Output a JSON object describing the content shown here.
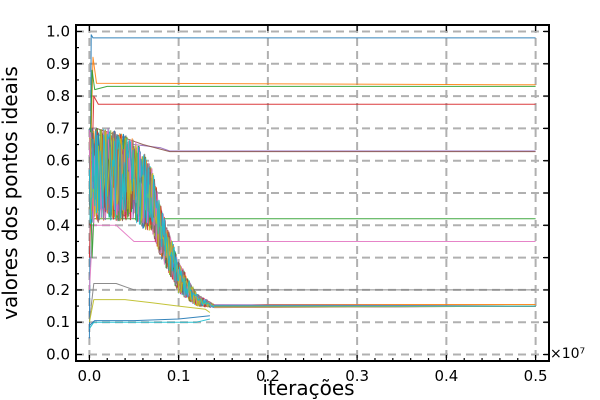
{
  "chart_data": {
    "type": "line",
    "title": "",
    "xlabel": "iterações",
    "ylabel": "valores dos pontos ideais",
    "x_offset_label": "×10⁷",
    "xlim": [
      -0.015,
      0.515
    ],
    "ylim": [
      -0.02,
      1.02
    ],
    "xticks": [
      0.0,
      0.1,
      0.2,
      0.3,
      0.4,
      0.5
    ],
    "xtick_labels": [
      "0.0",
      "0.1",
      "0.2",
      "0.3",
      "0.4",
      "0.5"
    ],
    "yticks": [
      0.0,
      0.1,
      0.2,
      0.3,
      0.4,
      0.5,
      0.6,
      0.7,
      0.8,
      0.9,
      1.0
    ],
    "ytick_labels": [
      "0.0",
      "0.1",
      "0.2",
      "0.3",
      "0.4",
      "0.5",
      "0.6",
      "0.7",
      "0.8",
      "0.9",
      "1.0"
    ],
    "grid": true,
    "legend": "none",
    "colors": [
      "#1f77b4",
      "#ff7f0e",
      "#2ca02c",
      "#d62728",
      "#9467bd",
      "#8c564b",
      "#e377c2",
      "#7f7f7f",
      "#bcbd22",
      "#17becf"
    ],
    "series": [
      {
        "x": [
          0,
          0.002,
          0.004,
          0.5
        ],
        "y": [
          0.05,
          0.99,
          0.98,
          0.98
        ]
      },
      {
        "x": [
          0,
          0.004,
          0.008,
          0.5
        ],
        "y": [
          0.45,
          0.92,
          0.84,
          0.835
        ]
      },
      {
        "x": [
          0,
          0.003,
          0.006,
          0.02,
          0.5
        ],
        "y": [
          0.5,
          0.88,
          0.82,
          0.83,
          0.83
        ]
      },
      {
        "x": [
          0,
          0.005,
          0.01,
          0.5
        ],
        "y": [
          0.3,
          0.8,
          0.775,
          0.775
        ]
      },
      {
        "x": [
          0,
          0.01,
          0.05,
          0.08,
          0.09,
          0.5
        ],
        "y": [
          0.6,
          0.68,
          0.65,
          0.64,
          0.63,
          0.63
        ]
      },
      {
        "x": [
          0,
          0.008,
          0.03,
          0.06,
          0.09,
          0.5
        ],
        "y": [
          0.4,
          0.7,
          0.68,
          0.65,
          0.628,
          0.628
        ]
      },
      {
        "x": [
          0,
          0.004,
          0.03,
          0.05,
          0.5
        ],
        "y": [
          0.2,
          0.4,
          0.4,
          0.35,
          0.35
        ]
      },
      {
        "x": [
          0,
          0.005,
          0.03,
          0.05,
          0.5
        ],
        "y": [
          0.1,
          0.22,
          0.22,
          0.2,
          0.2
        ]
      },
      {
        "x": [
          0,
          0.005,
          0.04,
          0.07,
          0.1,
          0.13,
          0.135
        ],
        "y": [
          0.1,
          0.17,
          0.17,
          0.16,
          0.15,
          0.14,
          0.13
        ]
      },
      {
        "x": [
          0,
          0.005,
          0.04,
          0.08,
          0.12,
          0.135
        ],
        "y": [
          0.08,
          0.1,
          0.1,
          0.1,
          0.1,
          0.11
        ]
      },
      {
        "x": [
          0,
          0.006,
          0.05,
          0.1,
          0.135
        ],
        "y": [
          0.09,
          0.105,
          0.105,
          0.11,
          0.12
        ]
      },
      {
        "x": [
          0.14,
          0.2,
          0.3,
          0.4,
          0.5
        ],
        "y": [
          0.15,
          0.155,
          0.155,
          0.155,
          0.155
        ]
      },
      {
        "x": [
          0,
          0.003,
          0.005,
          0.02,
          0.5
        ],
        "y": [
          0.7,
          0.3,
          0.42,
          0.42,
          0.42
        ]
      }
    ],
    "noisy_band": {
      "description": "dense overlapping oscillating series converging to 0.15",
      "x_start": 0.0,
      "x_end": 0.14,
      "center": [
        [
          0.0,
          0.55
        ],
        [
          0.02,
          0.56
        ],
        [
          0.05,
          0.54
        ],
        [
          0.07,
          0.48
        ],
        [
          0.08,
          0.38
        ],
        [
          0.1,
          0.24
        ],
        [
          0.12,
          0.17
        ],
        [
          0.14,
          0.15
        ]
      ],
      "amplitude": [
        [
          0.0,
          0.15
        ],
        [
          0.03,
          0.14
        ],
        [
          0.06,
          0.12
        ],
        [
          0.08,
          0.08
        ],
        [
          0.1,
          0.05
        ],
        [
          0.12,
          0.02
        ],
        [
          0.14,
          0.005
        ]
      ],
      "converged_value": 0.15
    }
  }
}
